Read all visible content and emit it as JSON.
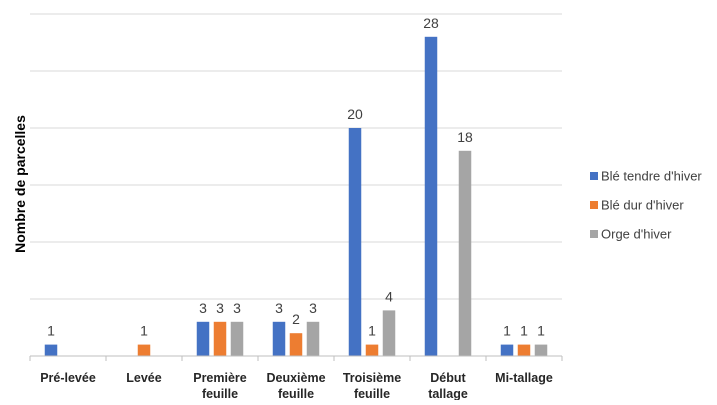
{
  "chart_data": {
    "type": "bar",
    "title": "",
    "xlabel": "",
    "ylabel": "Nombre de parcelles",
    "ylim": [
      0,
      30
    ],
    "grid": true,
    "legend_position": "right",
    "categories": [
      [
        "Pré-levée"
      ],
      [
        "Levée"
      ],
      [
        "Première",
        "feuille"
      ],
      [
        "Deuxième",
        "feuille"
      ],
      [
        "Troisième",
        "feuille"
      ],
      [
        "Début",
        "tallage"
      ],
      [
        "Mi-tallage"
      ]
    ],
    "series": [
      {
        "name": "Blé tendre d'hiver",
        "color": "#4472C4",
        "values": [
          1,
          0,
          3,
          3,
          20,
          28,
          1
        ],
        "labels": [
          "1",
          "",
          "3",
          "3",
          "20",
          "28",
          "1"
        ]
      },
      {
        "name": "Blé dur d'hiver",
        "color": "#ED7D31",
        "values": [
          0,
          1,
          3,
          2,
          1,
          0,
          1
        ],
        "labels": [
          "",
          "1",
          "3",
          "2",
          "1",
          "",
          "1"
        ]
      },
      {
        "name": "Orge d'hiver",
        "color": "#A5A5A5",
        "values": [
          0,
          0,
          3,
          3,
          4,
          18,
          1
        ],
        "labels": [
          "",
          "",
          "3",
          "3",
          "4",
          "18",
          "1"
        ]
      }
    ]
  }
}
